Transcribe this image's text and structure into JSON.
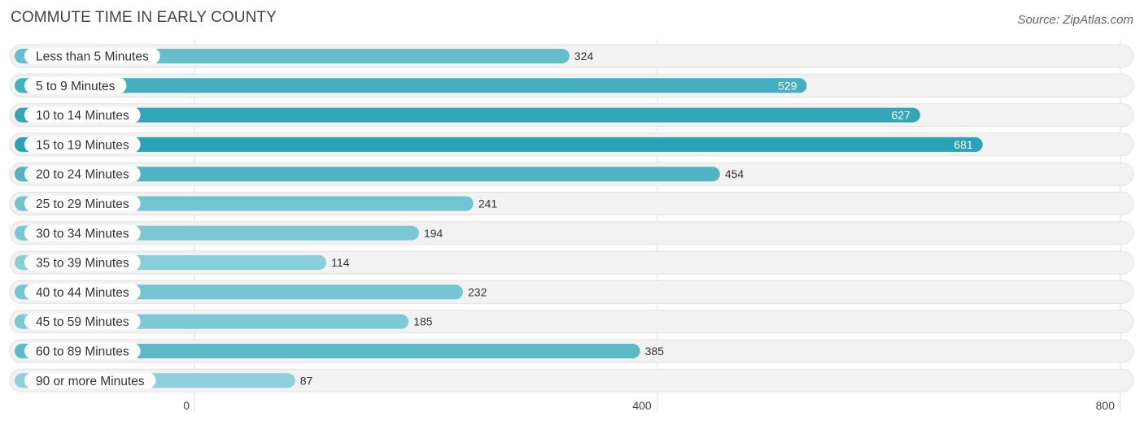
{
  "title": "COMMUTE TIME IN EARLY COUNTY",
  "source": "Source: ZipAtlas.com",
  "chart_data": {
    "type": "bar",
    "orientation": "horizontal",
    "title": "COMMUTE TIME IN EARLY COUNTY",
    "xlabel": "",
    "ylabel": "",
    "xlim": [
      0,
      800
    ],
    "ticks": [
      0,
      400,
      800
    ],
    "tick_labels": [
      "0",
      "400",
      "800"
    ],
    "grid": true,
    "categories": [
      "Less than 5 Minutes",
      "5 to 9 Minutes",
      "10 to 14 Minutes",
      "15 to 19 Minutes",
      "20 to 24 Minutes",
      "25 to 29 Minutes",
      "30 to 34 Minutes",
      "35 to 39 Minutes",
      "40 to 44 Minutes",
      "45 to 59 Minutes",
      "60 to 89 Minutes",
      "90 or more Minutes"
    ],
    "values": [
      324,
      529,
      627,
      681,
      454,
      241,
      194,
      114,
      232,
      185,
      385,
      87
    ],
    "value_labels": [
      "324",
      "529",
      "627",
      "681",
      "454",
      "241",
      "194",
      "114",
      "232",
      "185",
      "385",
      "87"
    ],
    "bar_color": "#2aa3b6",
    "bar_color_light": "#8dd0db"
  }
}
